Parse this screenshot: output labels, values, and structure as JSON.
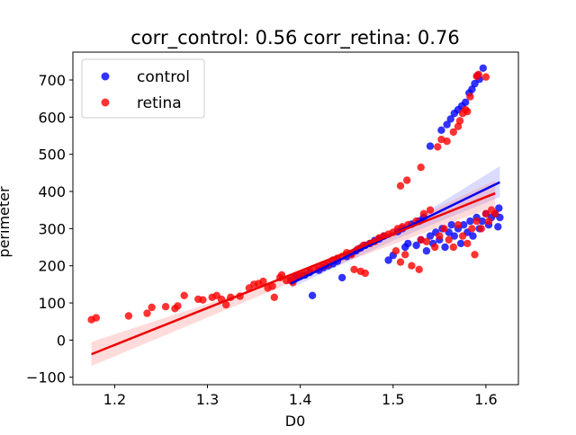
{
  "chart_data": {
    "type": "scatter",
    "title": "corr_control: 0.56  corr_retina: 0.76",
    "xlabel": "D0",
    "ylabel": "perimeter",
    "xlim": [
      1.155,
      1.635
    ],
    "ylim": [
      -120,
      775
    ],
    "xticks": [
      1.2,
      1.3,
      1.4,
      1.5,
      1.6
    ],
    "xtick_labels": [
      "1.2",
      "1.3",
      "1.4",
      "1.5",
      "1.6"
    ],
    "yticks": [
      -100,
      0,
      100,
      200,
      300,
      400,
      500,
      600,
      700
    ],
    "ytick_labels": [
      "−100",
      "0",
      "100",
      "200",
      "300",
      "400",
      "500",
      "600",
      "700"
    ],
    "grid": false,
    "legend_position": "top-left",
    "series": [
      {
        "name": "control",
        "color": "#0000ff",
        "points": [
          [
            1.39,
            160
          ],
          [
            1.395,
            170
          ],
          [
            1.4,
            172
          ],
          [
            1.405,
            175
          ],
          [
            1.41,
            182
          ],
          [
            1.413,
            120
          ],
          [
            1.42,
            188
          ],
          [
            1.425,
            195
          ],
          [
            1.43,
            200
          ],
          [
            1.435,
            205
          ],
          [
            1.44,
            212
          ],
          [
            1.445,
            168
          ],
          [
            1.45,
            225
          ],
          [
            1.455,
            232
          ],
          [
            1.46,
            240
          ],
          [
            1.465,
            248
          ],
          [
            1.47,
            255
          ],
          [
            1.475,
            260
          ],
          [
            1.48,
            268
          ],
          [
            1.485,
            272
          ],
          [
            1.49,
            280
          ],
          [
            1.495,
            215
          ],
          [
            1.5,
            228
          ],
          [
            1.505,
            292
          ],
          [
            1.51,
            300
          ],
          [
            1.513,
            250
          ],
          [
            1.516,
            260
          ],
          [
            1.52,
            312
          ],
          [
            1.525,
            255
          ],
          [
            1.528,
            320
          ],
          [
            1.53,
            270
          ],
          [
            1.533,
            330
          ],
          [
            1.536,
            240
          ],
          [
            1.54,
            280
          ],
          [
            1.543,
            260
          ],
          [
            1.546,
            290
          ],
          [
            1.55,
            270
          ],
          [
            1.553,
            300
          ],
          [
            1.556,
            250
          ],
          [
            1.56,
            290
          ],
          [
            1.563,
            310
          ],
          [
            1.566,
            280
          ],
          [
            1.57,
            300
          ],
          [
            1.573,
            260
          ],
          [
            1.576,
            310
          ],
          [
            1.58,
            290
          ],
          [
            1.583,
            320
          ],
          [
            1.586,
            280
          ],
          [
            1.59,
            330
          ],
          [
            1.593,
            300
          ],
          [
            1.596,
            320
          ],
          [
            1.6,
            340
          ],
          [
            1.603,
            310
          ],
          [
            1.606,
            330
          ],
          [
            1.61,
            340
          ],
          [
            1.613,
            305
          ],
          [
            1.614,
            355
          ],
          [
            1.615,
            330
          ],
          [
            1.54,
            522
          ],
          [
            1.552,
            565
          ],
          [
            1.558,
            580
          ],
          [
            1.562,
            595
          ],
          [
            1.566,
            610
          ],
          [
            1.57,
            620
          ],
          [
            1.574,
            630
          ],
          [
            1.578,
            640
          ],
          [
            1.582,
            665
          ],
          [
            1.585,
            675
          ],
          [
            1.588,
            690
          ],
          [
            1.591,
            712
          ],
          [
            1.593,
            702
          ],
          [
            1.597,
            732
          ]
        ],
        "fit_line": [
          [
            1.39,
            152
          ],
          [
            1.615,
            425
          ]
        ],
        "ci_band": [
          [
            1.39,
            140,
            165
          ],
          [
            1.5,
            268,
            290
          ],
          [
            1.615,
            385,
            468
          ]
        ]
      },
      {
        "name": "retina",
        "color": "#ff0000",
        "points": [
          [
            1.175,
            55
          ],
          [
            1.18,
            60
          ],
          [
            1.215,
            65
          ],
          [
            1.235,
            72
          ],
          [
            1.24,
            88
          ],
          [
            1.255,
            90
          ],
          [
            1.265,
            85
          ],
          [
            1.268,
            92
          ],
          [
            1.275,
            120
          ],
          [
            1.29,
            110
          ],
          [
            1.295,
            108
          ],
          [
            1.305,
            115
          ],
          [
            1.31,
            120
          ],
          [
            1.315,
            110
          ],
          [
            1.32,
            95
          ],
          [
            1.325,
            115
          ],
          [
            1.335,
            118
          ],
          [
            1.345,
            140
          ],
          [
            1.35,
            150
          ],
          [
            1.355,
            152
          ],
          [
            1.36,
            158
          ],
          [
            1.365,
            140
          ],
          [
            1.37,
            145
          ],
          [
            1.372,
            115
          ],
          [
            1.378,
            168
          ],
          [
            1.38,
            175
          ],
          [
            1.385,
            160
          ],
          [
            1.39,
            165
          ],
          [
            1.392,
            155
          ],
          [
            1.395,
            170
          ],
          [
            1.4,
            175
          ],
          [
            1.405,
            178
          ],
          [
            1.41,
            185
          ],
          [
            1.415,
            190
          ],
          [
            1.42,
            195
          ],
          [
            1.425,
            200
          ],
          [
            1.43,
            205
          ],
          [
            1.435,
            215
          ],
          [
            1.44,
            220
          ],
          [
            1.445,
            225
          ],
          [
            1.45,
            235
          ],
          [
            1.455,
            230
          ],
          [
            1.458,
            190
          ],
          [
            1.462,
            245
          ],
          [
            1.465,
            185
          ],
          [
            1.468,
            255
          ],
          [
            1.47,
            180
          ],
          [
            1.475,
            260
          ],
          [
            1.48,
            265
          ],
          [
            1.485,
            275
          ],
          [
            1.49,
            280
          ],
          [
            1.495,
            285
          ],
          [
            1.5,
            290
          ],
          [
            1.503,
            240
          ],
          [
            1.505,
            300
          ],
          [
            1.508,
            210
          ],
          [
            1.51,
            305
          ],
          [
            1.513,
            230
          ],
          [
            1.516,
            310
          ],
          [
            1.52,
            200
          ],
          [
            1.525,
            320
          ],
          [
            1.528,
            190
          ],
          [
            1.53,
            270
          ],
          [
            1.533,
            340
          ],
          [
            1.536,
            265
          ],
          [
            1.54,
            350
          ],
          [
            1.545,
            250
          ],
          [
            1.55,
            280
          ],
          [
            1.555,
            300
          ],
          [
            1.56,
            270
          ],
          [
            1.565,
            250
          ],
          [
            1.57,
            310
          ],
          [
            1.575,
            280
          ],
          [
            1.58,
            260
          ],
          [
            1.585,
            300
          ],
          [
            1.588,
            230
          ],
          [
            1.59,
            320
          ],
          [
            1.595,
            300
          ],
          [
            1.6,
            340
          ],
          [
            1.603,
            320
          ],
          [
            1.606,
            350
          ],
          [
            1.61,
            340
          ],
          [
            1.508,
            415
          ],
          [
            1.515,
            430
          ],
          [
            1.53,
            465
          ],
          [
            1.548,
            520
          ],
          [
            1.552,
            540
          ],
          [
            1.558,
            535
          ],
          [
            1.565,
            560
          ],
          [
            1.57,
            575
          ],
          [
            1.572,
            590
          ],
          [
            1.575,
            610
          ],
          [
            1.578,
            620
          ],
          [
            1.58,
            615
          ],
          [
            1.583,
            655
          ],
          [
            1.59,
            710
          ],
          [
            1.592,
            715
          ],
          [
            1.6,
            708
          ]
        ],
        "fit_line": [
          [
            1.175,
            -38
          ],
          [
            1.61,
            395
          ]
        ],
        "ci_band": [
          [
            1.175,
            -70,
            -5
          ],
          [
            1.4,
            165,
            180
          ],
          [
            1.61,
            360,
            430
          ]
        ]
      }
    ]
  }
}
